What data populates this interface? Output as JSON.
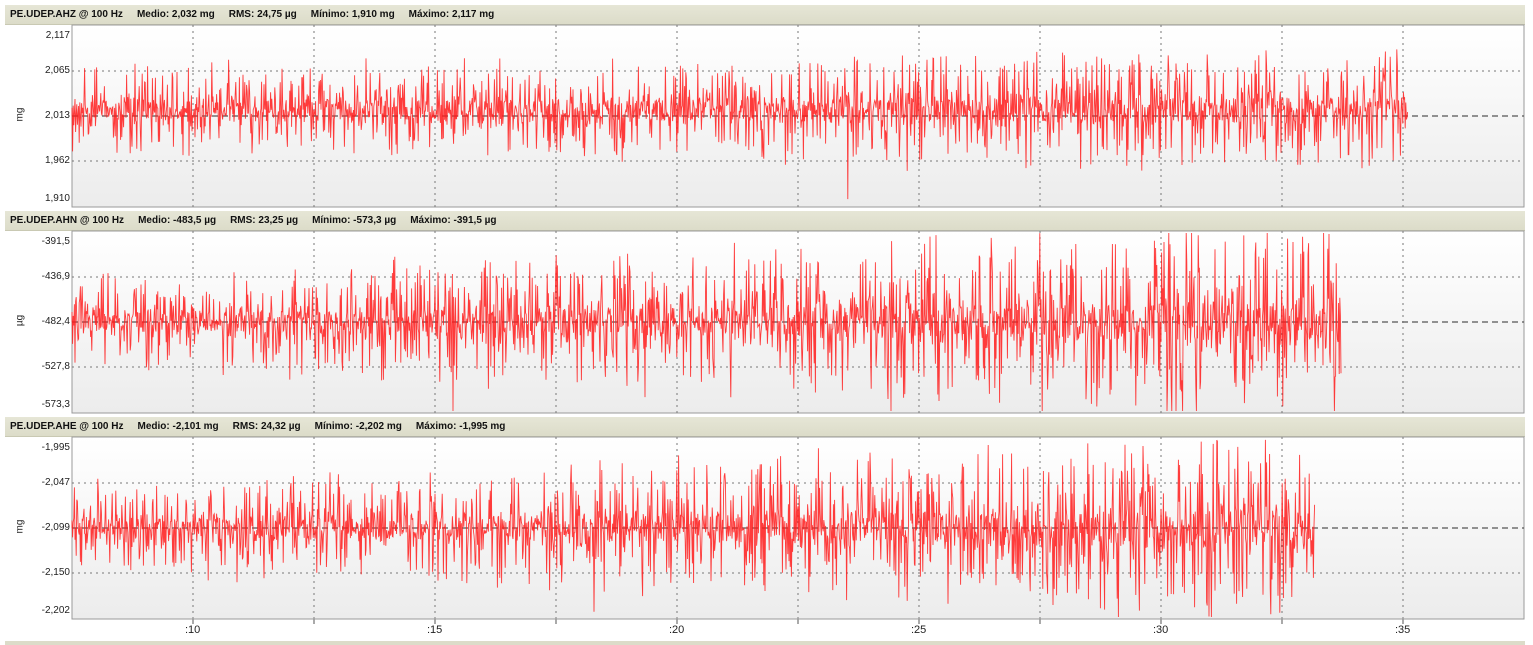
{
  "channels": [
    {
      "name": "PE.UDEP.AHZ @ 100 Hz",
      "medio": "Medio: 2,032 mg",
      "rms": "RMS: 24,75 µg",
      "minimo": "Mínimo: 1,910 mg",
      "maximo": "Máximo: 2,117 mg",
      "unit": "mg",
      "ticks": [
        "2,117",
        "2,065",
        "2,013",
        "1,962",
        "1,910"
      ],
      "trace_color": "#ff1a1a",
      "end_fraction": 0.92,
      "amplitude": 0.3
    },
    {
      "name": "PE.UDEP.AHN @ 100 Hz",
      "medio": "Medio: -483,5 µg",
      "rms": "RMS: 23,25 µg",
      "minimo": "Mínimo: -573,3 µg",
      "maximo": "Máximo: -391,5 µg",
      "unit": "µg",
      "ticks": [
        "-391,5",
        "-436,9",
        "-482,4",
        "-527,8",
        "-573,3"
      ],
      "trace_color": "#ff1a1a",
      "end_fraction": 0.874,
      "amplitude": 0.32
    },
    {
      "name": "PE.UDEP.AHE @ 100 Hz",
      "medio": "Medio: -2,101 mg",
      "rms": "RMS: 24,32 µg",
      "minimo": "Mínimo: -2,202 mg",
      "maximo": "Máximo: -1,995 mg",
      "unit": "mg",
      "ticks": [
        "-1,995",
        "-2,047",
        "-2,099",
        "-2,150",
        "-2,202"
      ],
      "trace_color": "#ff1a1a",
      "end_fraction": 0.856,
      "amplitude": 0.3
    }
  ],
  "x_axis": {
    "labels": [
      ":10",
      ":15",
      ":20",
      ":25",
      ":30",
      ":35"
    ]
  }
}
